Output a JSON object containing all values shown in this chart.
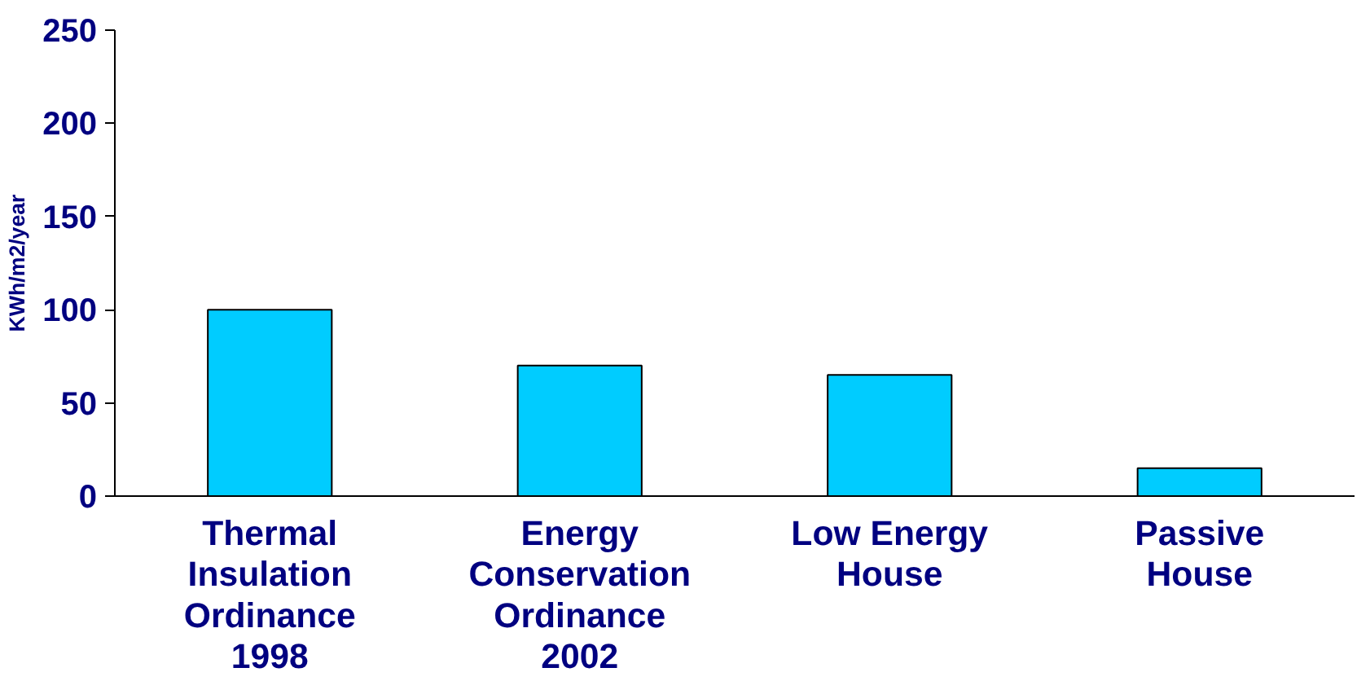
{
  "chart_data": {
    "type": "bar",
    "ylabel": "KWh/m2/year",
    "categories": [
      "Thermal\nInsulation\nOrdinance\n1998",
      "Energy\nConservation\nOrdinance\n2002",
      "Low Energy\nHouse",
      "Passive\nHouse"
    ],
    "values": [
      100,
      70,
      65,
      15
    ],
    "color": "#00ccff",
    "ylim": [
      0,
      250
    ],
    "yticks": [
      0,
      50,
      100,
      150,
      200,
      250
    ],
    "grid": false
  }
}
